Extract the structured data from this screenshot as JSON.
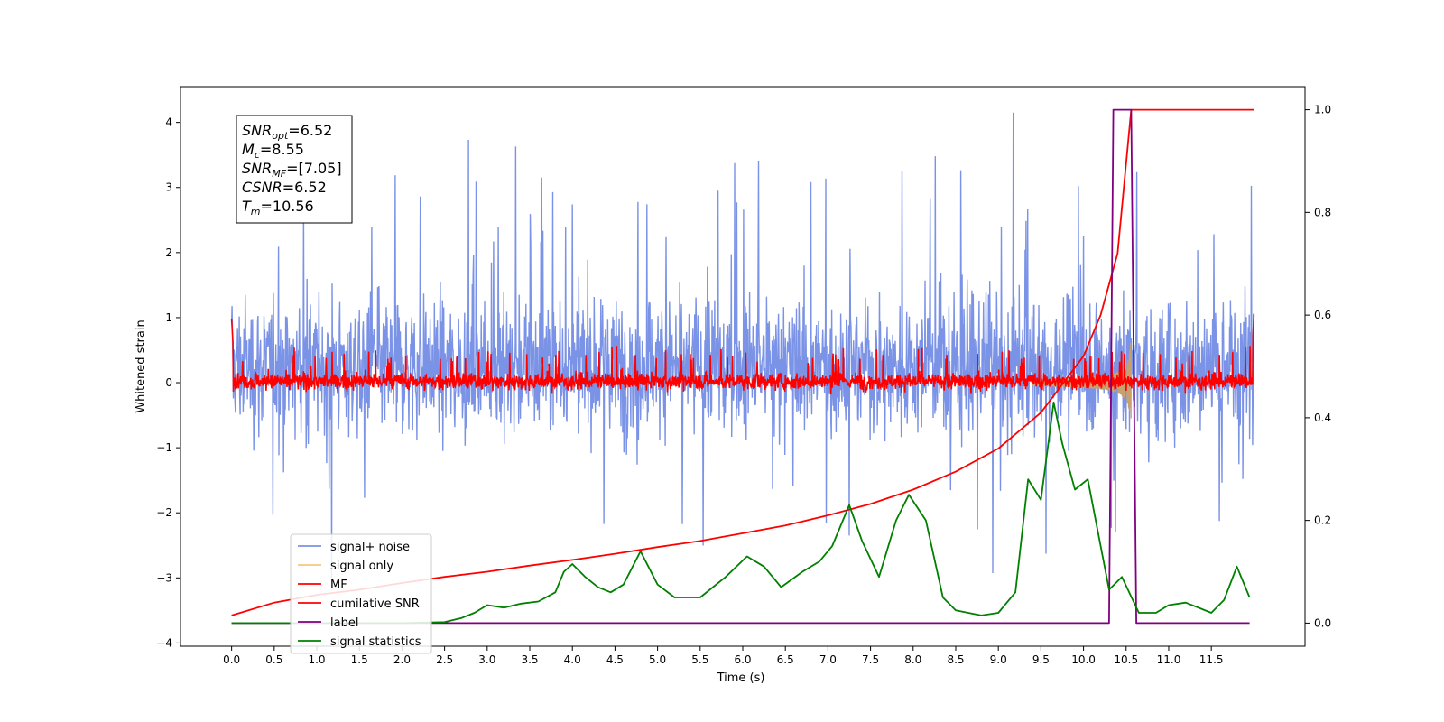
{
  "chart_data": {
    "type": "line",
    "xlabel": "Time (s)",
    "ylabel": "Whitened strain",
    "xlim": [
      -0.6,
      12.6
    ],
    "ylim": [
      -4.05,
      4.55
    ],
    "y2lim": [
      -0.045,
      1.045
    ],
    "grid": false,
    "x_ticks": [
      "0.0",
      "0.5",
      "1.0",
      "1.5",
      "2.0",
      "2.5",
      "3.0",
      "3.5",
      "4.0",
      "4.5",
      "5.0",
      "5.5",
      "6.0",
      "6.5",
      "7.0",
      "7.5",
      "8.0",
      "8.5",
      "9.0",
      "9.5",
      "10.0",
      "10.5",
      "11.0",
      "11.5"
    ],
    "y_ticks": [
      "4",
      "3",
      "2",
      "1",
      "0",
      "−1",
      "−2",
      "−3",
      "−4"
    ],
    "y2_ticks": [
      "1.0",
      "0.8",
      "0.6",
      "0.4",
      "0.2",
      "0.0"
    ],
    "info_box": [
      {
        "base": "SNR",
        "sub": "opt",
        "value": "=6.52"
      },
      {
        "base": "M",
        "sub": "c",
        "value": "=8.55"
      },
      {
        "base": "SNR",
        "sub": "MF",
        "value": "=[7.05]"
      },
      {
        "base": "CSNR",
        "sub": "",
        "value": "=6.52"
      },
      {
        "base": "T",
        "sub": "m",
        "value": "=10.56"
      }
    ],
    "legend": {
      "placement": "lower-left",
      "entries": [
        {
          "label": "signal+ noise",
          "color": "#7b93e6"
        },
        {
          "label": "signal only",
          "color": "#f5c77e"
        },
        {
          "label": "MF",
          "color": "#ff0000"
        },
        {
          "label": "cumilative SNR",
          "color": "#ff0000"
        },
        {
          "label": "label",
          "color": "#800080"
        },
        {
          "label": "signal statistics",
          "color": "#008000"
        }
      ]
    },
    "series": [
      {
        "name": "signal+ noise",
        "axis": "left",
        "color": "#7b93e6",
        "x_range": [
          0,
          12
        ],
        "band": [
          -1.6,
          2.1
        ],
        "approx_amplitude": 1.0
      },
      {
        "name": "signal only",
        "axis": "left",
        "color": "#c8a06e",
        "chirp_end": 10.56,
        "peak_amplitude": 1.0
      },
      {
        "name": "MF",
        "axis": "left",
        "color": "#ff0000",
        "x_range": [
          0,
          12
        ],
        "band": [
          -0.2,
          0.25
        ]
      },
      {
        "name": "cumilative SNR",
        "axis": "right",
        "color": "#ff0000",
        "x": [
          0,
          0.5,
          1,
          1.5,
          2,
          2.5,
          3,
          3.5,
          4,
          4.5,
          5,
          5.5,
          6,
          6.5,
          7,
          7.5,
          8,
          8.5,
          9,
          9.5,
          10,
          10.2,
          10.4,
          10.56,
          12
        ],
        "values": [
          0.015,
          0.04,
          0.055,
          0.065,
          0.078,
          0.09,
          0.1,
          0.112,
          0.123,
          0.135,
          0.148,
          0.16,
          0.175,
          0.19,
          0.21,
          0.232,
          0.26,
          0.295,
          0.34,
          0.41,
          0.52,
          0.6,
          0.72,
          1.0,
          1.0
        ]
      },
      {
        "name": "label",
        "axis": "right",
        "color": "#800080",
        "x": [
          0,
          10.3,
          10.35,
          10.56,
          10.62,
          11.95
        ],
        "values": [
          0,
          0,
          1,
          1,
          0,
          0
        ]
      },
      {
        "name": "signal statistics",
        "axis": "right",
        "color": "#008000",
        "x": [
          0,
          0.5,
          1,
          1.5,
          2,
          2.5,
          2.7,
          2.85,
          3,
          3.2,
          3.4,
          3.6,
          3.8,
          3.9,
          4,
          4.15,
          4.3,
          4.45,
          4.6,
          4.8,
          5,
          5.2,
          5.5,
          5.8,
          6.05,
          6.25,
          6.45,
          6.7,
          6.9,
          7.05,
          7.25,
          7.4,
          7.6,
          7.8,
          7.95,
          8.15,
          8.35,
          8.5,
          8.8,
          9,
          9.2,
          9.35,
          9.5,
          9.65,
          9.75,
          9.9,
          10.05,
          10.3,
          10.45,
          10.65,
          10.85,
          11,
          11.2,
          11.5,
          11.65,
          11.8,
          11.95
        ],
        "values": [
          0,
          0,
          0,
          0,
          0,
          0.002,
          0.01,
          0.02,
          0.035,
          0.03,
          0.038,
          0.042,
          0.06,
          0.1,
          0.115,
          0.09,
          0.07,
          0.06,
          0.075,
          0.14,
          0.075,
          0.05,
          0.05,
          0.09,
          0.13,
          0.11,
          0.07,
          0.1,
          0.12,
          0.15,
          0.23,
          0.16,
          0.09,
          0.2,
          0.25,
          0.2,
          0.05,
          0.025,
          0.015,
          0.02,
          0.06,
          0.28,
          0.24,
          0.43,
          0.35,
          0.26,
          0.28,
          0.065,
          0.09,
          0.02,
          0.02,
          0.035,
          0.04,
          0.02,
          0.045,
          0.11,
          0.05
        ]
      }
    ]
  }
}
